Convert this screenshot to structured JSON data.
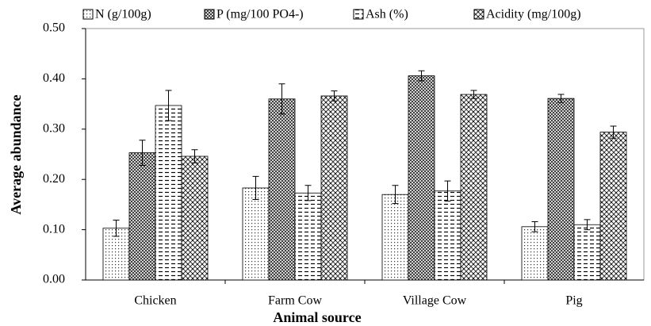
{
  "chart_data": {
    "type": "bar",
    "x_label": "Animal source",
    "y_label": "Average abundance",
    "categories": [
      "Chicken",
      "Farm Cow",
      "Village Cow",
      "Pig"
    ],
    "series": [
      {
        "name": "N (g/100g)",
        "color": "#000000",
        "values": [
          0.103,
          0.183,
          0.17,
          0.106
        ],
        "errors": [
          0.016,
          0.023,
          0.018,
          0.01
        ]
      },
      {
        "name": "P (mg/100 PO4-)",
        "color": "#000000",
        "values": [
          0.253,
          0.36,
          0.406,
          0.361
        ],
        "errors": [
          0.025,
          0.03,
          0.01,
          0.008
        ]
      },
      {
        "name": "Ash (%)",
        "color": "#000000",
        "values": [
          0.347,
          0.173,
          0.177,
          0.11
        ],
        "errors": [
          0.03,
          0.015,
          0.02,
          0.01
        ]
      },
      {
        "name": "Acidity (mg/100g)",
        "color": "#000000",
        "values": [
          0.246,
          0.366,
          0.369,
          0.294
        ],
        "errors": [
          0.013,
          0.01,
          0.008,
          0.012
        ]
      }
    ],
    "ylim": [
      0,
      0.5
    ],
    "yticks": [
      {
        "value": 0,
        "label": "0.00"
      },
      {
        "value": 0.1,
        "label": "0.10"
      },
      {
        "value": 0.2,
        "label": "0.20"
      },
      {
        "value": 0.3,
        "label": "0.30"
      },
      {
        "value": 0.4,
        "label": "0.40"
      },
      {
        "value": 0.5,
        "label": "0.50"
      }
    ],
    "grid": false,
    "legend": "top"
  }
}
